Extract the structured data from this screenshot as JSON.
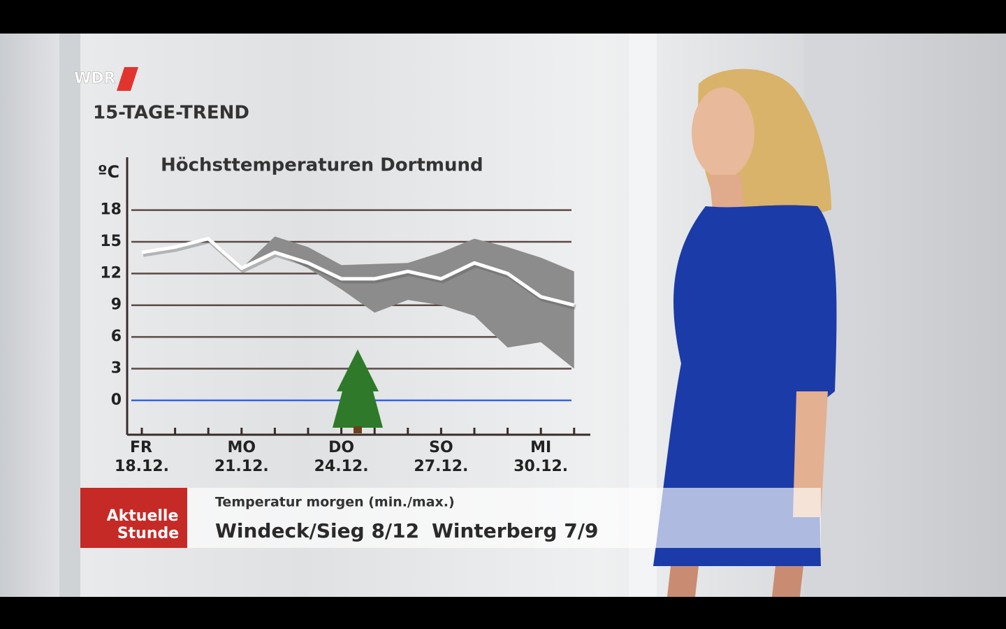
{
  "header": {
    "logo": "WDR",
    "title": "15-TAGE-TREND"
  },
  "chart_data": {
    "type": "line",
    "title": "Höchsttemperaturen Dortmund",
    "y_label": "ºC",
    "categories": [
      "FR",
      null,
      null,
      "MO",
      null,
      null,
      "DO",
      null,
      null,
      "SO",
      null,
      null,
      "MI",
      null
    ],
    "category_dates": [
      "18.12.",
      null,
      null,
      "21.12.",
      null,
      null,
      "24.12.",
      null,
      null,
      "27.12.",
      null,
      null,
      "30.12.",
      null
    ],
    "values": [
      14,
      14.5,
      15.3,
      12.5,
      14,
      13,
      11.5,
      11.5,
      12.2,
      11.5,
      13,
      12,
      9.8,
      9
    ],
    "color": "#ffffff",
    "band": {
      "upper": [
        14,
        14.5,
        15.3,
        12.5,
        15.5,
        14.5,
        12.8,
        12.9,
        13,
        14,
        15.3,
        14.5,
        13.5,
        12.2
      ],
      "lower": [
        14,
        14.5,
        15.3,
        12.5,
        14,
        12.5,
        10.5,
        8.3,
        9.5,
        9,
        8,
        5,
        5.5,
        3
      ],
      "color": "#8c8c8c"
    },
    "ylim": [
      -3.25,
      23
    ],
    "yticks": [
      0,
      3,
      6,
      9,
      12,
      15,
      18
    ],
    "grid": true,
    "grid_color": "#5b4a45",
    "zero_line_color": "#3a62d8"
  },
  "lower_third": {
    "brand": [
      "Aktuelle",
      "Stunde"
    ],
    "caption": "Temperatur morgen (min./max.)",
    "items": [
      "Windeck/Sieg 8/12",
      "Winterberg 7/9"
    ]
  }
}
